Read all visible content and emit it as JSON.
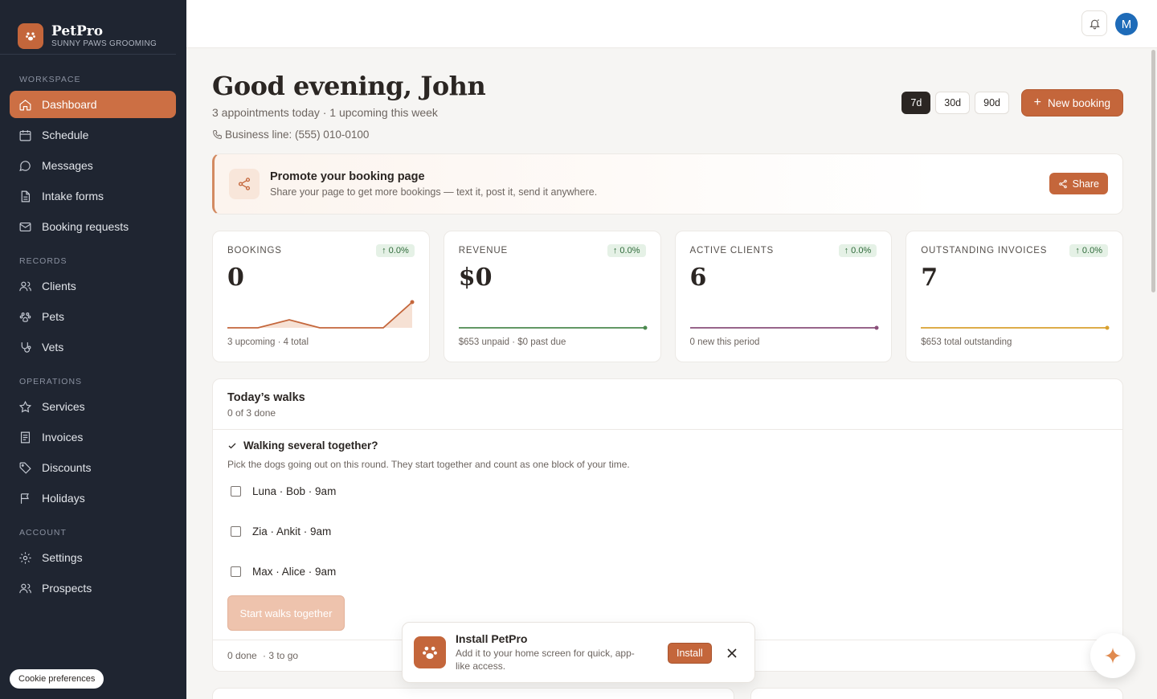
{
  "brand": {
    "name": "PetPro",
    "subtitle": "SUNNY PAWS GROOMING"
  },
  "sidebar": {
    "sections": {
      "workspace": "WORKSPACE",
      "records": "RECORDS",
      "operations": "OPERATIONS",
      "account": "ACCOUNT"
    },
    "items": {
      "dashboard": "Dashboard",
      "schedule": "Schedule",
      "messages": "Messages",
      "intake_forms": "Intake forms",
      "booking_requests": "Booking requests",
      "clients": "Clients",
      "pets": "Pets",
      "vets": "Vets",
      "services": "Services",
      "invoices": "Invoices",
      "discounts": "Discounts",
      "holidays": "Holidays",
      "settings": "Settings",
      "prospects": "Prospects"
    },
    "cookie": "Cookie preferences"
  },
  "topbar": {
    "avatar_initial": "M"
  },
  "header": {
    "greeting": "Good evening, John",
    "summary": "3 appointments today · 1 upcoming this week",
    "business_line": "Business line: (555) 010-0100",
    "ranges": [
      "7d",
      "30d",
      "90d"
    ],
    "new_booking": "New booking"
  },
  "promo": {
    "title": "Promote your booking page",
    "description": "Share your page to get more bookings — text it, post it, send it anywhere.",
    "share": "Share"
  },
  "stats": [
    {
      "label": "BOOKINGS",
      "change": "↑ 0.0%",
      "value": "0",
      "foot": "3 upcoming · 4 total",
      "color": "#c4663b"
    },
    {
      "label": "REVENUE",
      "change": "↑ 0.0%",
      "value": "$0",
      "foot": "$653 unpaid · $0 past due",
      "color": "#4c8a4f"
    },
    {
      "label": "ACTIVE CLIENTS",
      "change": "↑ 0.0%",
      "value": "6",
      "foot": "0 new this period",
      "color": "#8a4f7a"
    },
    {
      "label": "OUTSTANDING INVOICES",
      "change": "↑ 0.0%",
      "value": "7",
      "foot": "$653 total outstanding",
      "color": "#d9a12f"
    }
  ],
  "walks": {
    "title": "Today’s walks",
    "progress": "0 of 3 done",
    "together_title": "Walking several together?",
    "together_desc": "Pick the dogs going out on this round. They start together and count as one block of your time.",
    "rows": [
      "Luna · Bob · 9am",
      "Zia · Ankit · 9am",
      "Max · Alice · 9am"
    ],
    "start_button": "Start walks together",
    "foot_done": "0 done",
    "foot_togo": "· 3 to go"
  },
  "install": {
    "title": "Install PetPro",
    "description": "Add it to your home screen for quick, app-like access.",
    "button": "Install"
  }
}
